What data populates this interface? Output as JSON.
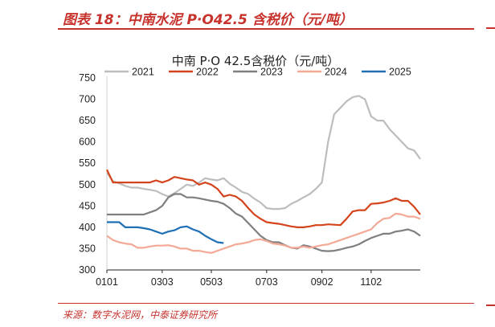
{
  "figure": {
    "title": "图表 18：中南水泥 P·O42.5 含税价（元/吨）",
    "source": "来源：数字水泥网，中泰证券研究所"
  },
  "chart_data": {
    "type": "line",
    "title": "中南 P·O 42.5含税价（元/吨）",
    "xlabel": "",
    "ylabel": "",
    "ylim": [
      300,
      750
    ],
    "yticks": [
      300,
      350,
      400,
      450,
      500,
      550,
      600,
      650,
      700,
      750
    ],
    "xlim": [
      1,
      52
    ],
    "xticks": [
      {
        "pos": 1,
        "label": "0101"
      },
      {
        "pos": 10,
        "label": "0303"
      },
      {
        "pos": 18,
        "label": "0503"
      },
      {
        "pos": 27,
        "label": "0703"
      },
      {
        "pos": 36,
        "label": "0902"
      },
      {
        "pos": 44,
        "label": "1102"
      }
    ],
    "grid": false,
    "legend_position": "top",
    "series": [
      {
        "name": "2021",
        "color": "#bdbdbd",
        "x": [
          1,
          2,
          3,
          4,
          5,
          6,
          7,
          8,
          9,
          10,
          11,
          12,
          13,
          14,
          15,
          16,
          17,
          18,
          19,
          20,
          21,
          22,
          23,
          24,
          25,
          26,
          27,
          28,
          29,
          30,
          31,
          32,
          33,
          34,
          35,
          36,
          37,
          38,
          39,
          40,
          41,
          42,
          43,
          44,
          45,
          46,
          47,
          48,
          49,
          50,
          51,
          52
        ],
        "y": [
          528,
          508,
          503,
          497,
          493,
          493,
          490,
          488,
          485,
          478,
          472,
          480,
          490,
          500,
          497,
          505,
          515,
          512,
          510,
          515,
          502,
          493,
          483,
          478,
          467,
          458,
          445,
          443,
          443,
          445,
          455,
          462,
          470,
          478,
          490,
          505,
          600,
          665,
          680,
          695,
          705,
          708,
          700,
          660,
          650,
          650,
          630,
          615,
          600,
          585,
          580,
          560
        ]
      },
      {
        "name": "2022",
        "color": "#d4441c",
        "x": [
          1,
          2,
          3,
          4,
          5,
          6,
          7,
          8,
          9,
          10,
          11,
          12,
          13,
          14,
          15,
          16,
          17,
          18,
          19,
          20,
          21,
          22,
          23,
          24,
          25,
          26,
          27,
          28,
          29,
          30,
          31,
          32,
          33,
          34,
          35,
          36,
          37,
          38,
          39,
          40,
          41,
          42,
          43,
          44,
          45,
          46,
          47,
          48,
          49,
          50,
          51,
          52
        ],
        "y": [
          535,
          505,
          505,
          505,
          505,
          505,
          505,
          505,
          510,
          505,
          510,
          518,
          515,
          512,
          510,
          500,
          505,
          500,
          490,
          472,
          476,
          472,
          462,
          445,
          430,
          420,
          412,
          410,
          408,
          405,
          402,
          400,
          400,
          402,
          405,
          405,
          407,
          406,
          405,
          420,
          437,
          440,
          440,
          455,
          456,
          458,
          462,
          468,
          462,
          462,
          448,
          430
        ]
      },
      {
        "name": "2023",
        "color": "#7f7f7f",
        "x": [
          1,
          2,
          3,
          4,
          5,
          6,
          7,
          8,
          9,
          10,
          11,
          12,
          13,
          14,
          15,
          16,
          17,
          18,
          19,
          20,
          21,
          22,
          23,
          24,
          25,
          26,
          27,
          28,
          29,
          30,
          31,
          32,
          33,
          34,
          35,
          36,
          37,
          38,
          39,
          40,
          41,
          42,
          43,
          44,
          45,
          46,
          47,
          48,
          49,
          50,
          51,
          52
        ],
        "y": [
          430,
          430,
          430,
          430,
          430,
          430,
          430,
          435,
          440,
          450,
          470,
          478,
          478,
          470,
          470,
          468,
          465,
          462,
          460,
          455,
          445,
          432,
          425,
          410,
          395,
          380,
          370,
          365,
          365,
          358,
          352,
          350,
          358,
          355,
          350,
          345,
          344,
          345,
          348,
          352,
          355,
          360,
          368,
          375,
          380,
          385,
          385,
          390,
          392,
          395,
          390,
          380
        ]
      },
      {
        "name": "2024",
        "color": "#f4a896",
        "x": [
          1,
          2,
          3,
          4,
          5,
          6,
          7,
          8,
          9,
          10,
          11,
          12,
          13,
          14,
          15,
          16,
          17,
          18,
          19,
          20,
          21,
          22,
          23,
          24,
          25,
          26,
          27,
          28,
          29,
          30,
          31,
          32,
          33,
          34,
          35,
          36,
          37,
          38,
          39,
          40,
          41,
          42,
          43,
          44,
          45,
          46,
          47,
          48,
          49,
          50,
          51,
          52
        ],
        "y": [
          380,
          370,
          365,
          362,
          360,
          352,
          352,
          355,
          357,
          357,
          358,
          355,
          350,
          350,
          345,
          345,
          342,
          340,
          345,
          350,
          355,
          360,
          362,
          365,
          370,
          372,
          368,
          362,
          360,
          357,
          352,
          352,
          355,
          352,
          355,
          358,
          360,
          365,
          370,
          375,
          380,
          385,
          390,
          395,
          410,
          420,
          422,
          432,
          430,
          425,
          425,
          420
        ]
      },
      {
        "name": "2025",
        "color": "#1f6fb5",
        "x": [
          1,
          2,
          3,
          4,
          5,
          6,
          7,
          8,
          9,
          10,
          11,
          12,
          13,
          14,
          15,
          16,
          17,
          18,
          19,
          20
        ],
        "y": [
          412,
          412,
          412,
          400,
          400,
          400,
          398,
          395,
          390,
          385,
          390,
          393,
          400,
          402,
          395,
          390,
          380,
          372,
          365,
          363
        ]
      }
    ]
  }
}
